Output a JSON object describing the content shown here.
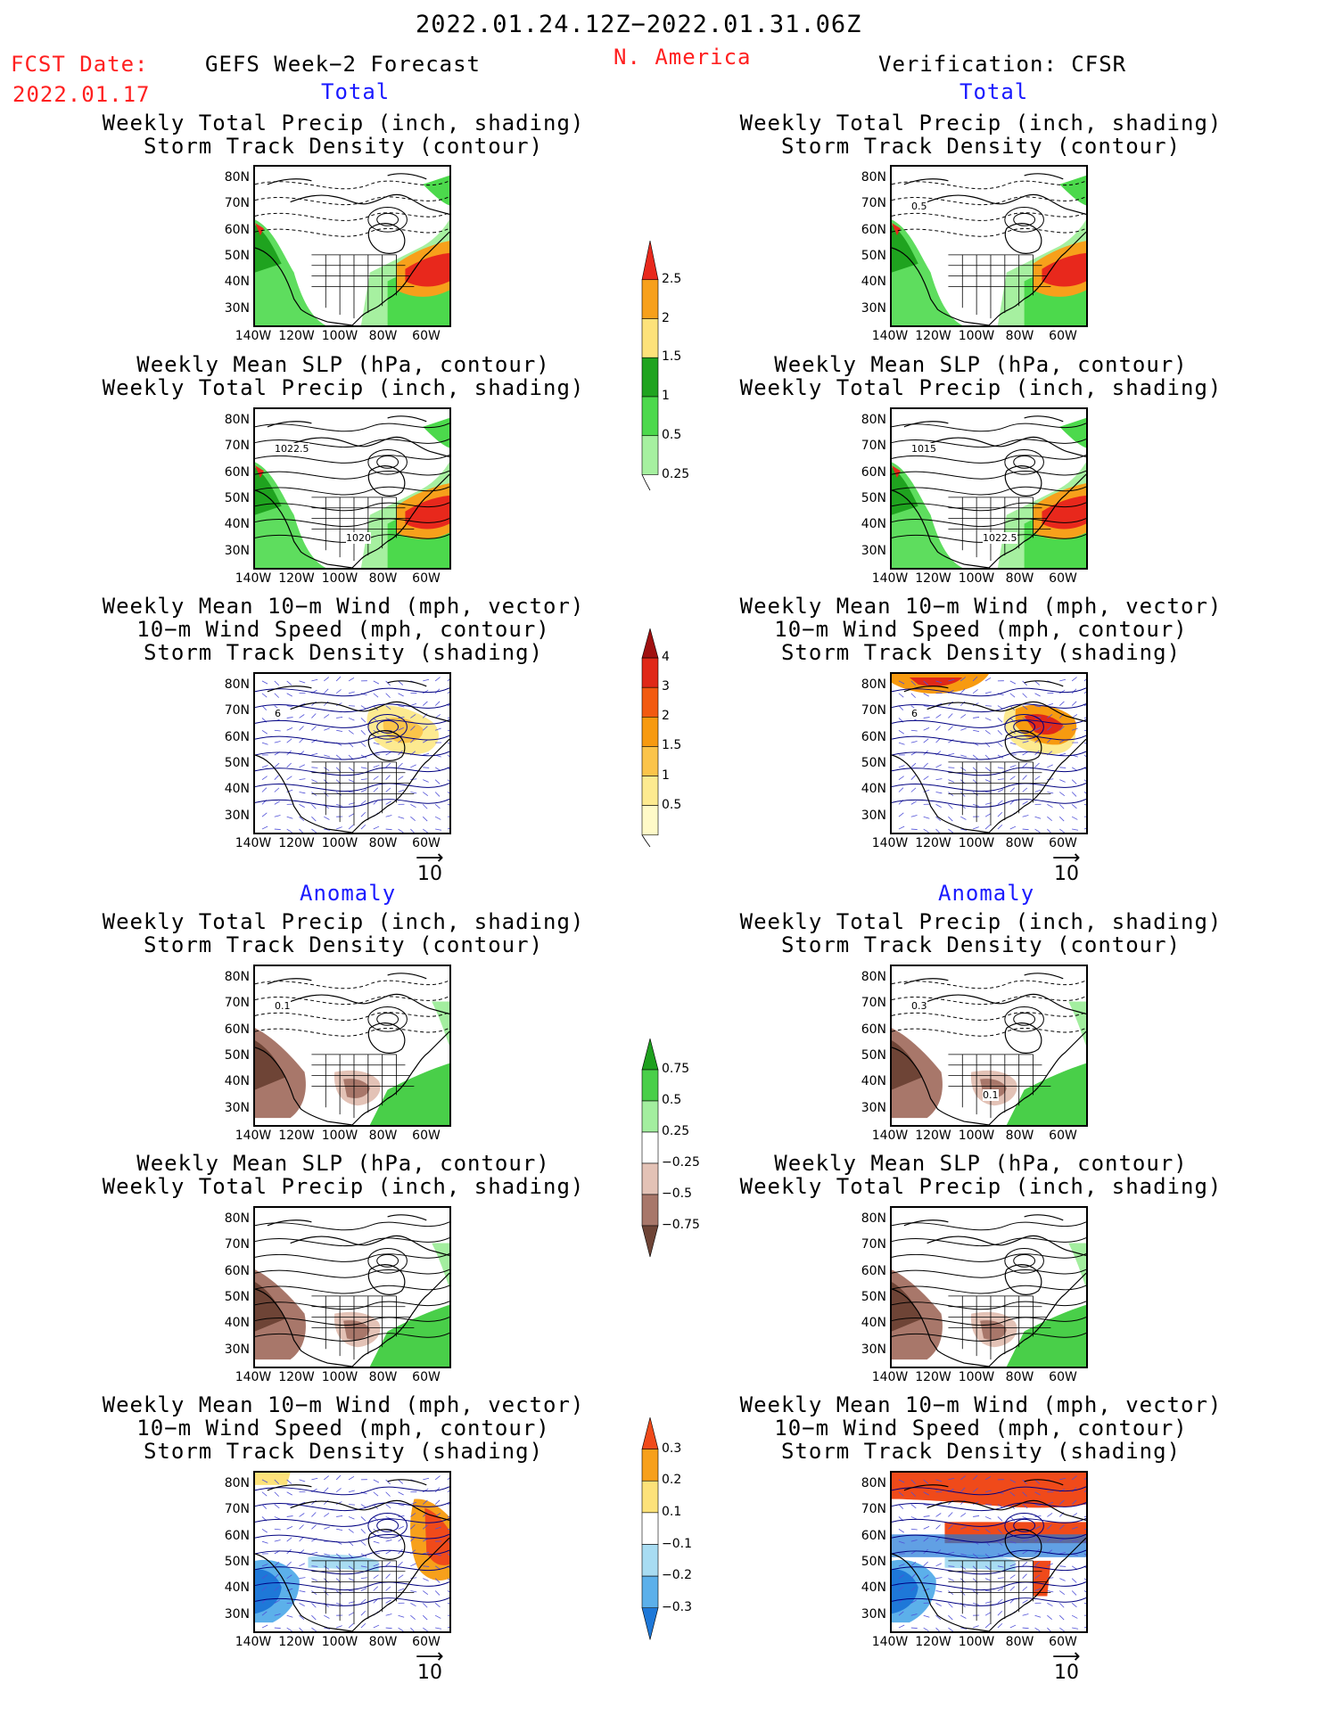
{
  "header": {
    "period": "2022.01.24.12Z−2022.01.31.06Z",
    "fcst_label": "FCST Date:",
    "fcst_date": "2022.01.17",
    "left_product": "GEFS Week−2 Forecast",
    "region": "N. America",
    "right_product": "Verification: CFSR"
  },
  "sections": {
    "total": "Total",
    "anomaly": "Anomaly"
  },
  "titles": {
    "precip_track": [
      "Weekly Total Precip (inch, shading)",
      "Storm Track Density (contour)"
    ],
    "slp_precip": [
      "Weekly Mean SLP (hPa, contour)",
      "Weekly Total Precip (inch, shading)"
    ],
    "wind_track": [
      "Weekly Mean 10−m Wind (mph, vector)",
      "10−m Wind Speed (mph, contour)",
      "Storm Track Density (shading)"
    ]
  },
  "axes": {
    "lat": [
      "80N",
      "70N",
      "60N",
      "50N",
      "40N",
      "30N"
    ],
    "lon": [
      "140W",
      "120W",
      "100W",
      "80W",
      "60W"
    ]
  },
  "vector_ref": "10",
  "panels": {
    "fcst_total_precip": {
      "contour_label": ""
    },
    "fcst_total_slp": {
      "contour_labels": [
        "1022.5",
        "1020"
      ]
    },
    "fcst_total_wind": {
      "contour_labels": [
        "6"
      ]
    },
    "ver_total_precip": {
      "contour_labels": [
        "0.5"
      ]
    },
    "ver_total_slp": {
      "contour_labels": [
        "1015",
        "1022.5"
      ]
    },
    "ver_total_wind": {
      "contour_labels": [
        "6"
      ]
    },
    "fcst_anom_precip": {
      "contour_labels": [
        "0.1"
      ]
    },
    "ver_anom_precip": {
      "contour_labels": [
        "0.3",
        "0.1"
      ]
    }
  },
  "colorbars": {
    "total_precip": {
      "labels": [
        "2.5",
        "2",
        "1.5",
        "1",
        "0.5",
        "0.25"
      ],
      "colors": [
        "#e8281c",
        "#f7a01b",
        "#fde27a",
        "#1fa31f",
        "#4cd94c",
        "#a6f0a0"
      ]
    },
    "total_track": {
      "labels": [
        "4",
        "3",
        "2",
        "1.5",
        "1",
        "0.5"
      ],
      "colors": [
        "#a01010",
        "#e02818",
        "#f25a10",
        "#f79a10",
        "#fbc44a",
        "#fdea90",
        "#fffac8"
      ]
    },
    "anom_precip": {
      "labels": [
        "0.75",
        "0.5",
        "0.25",
        "−0.25",
        "−0.5",
        "−0.75"
      ],
      "colors": [
        "#1ea01e",
        "#49cf49",
        "#a3ee9f",
        "#ffffff",
        "#e3c2b6",
        "#a8776a",
        "#6e4436"
      ]
    },
    "anom_track": {
      "labels": [
        "0.3",
        "0.2",
        "0.1",
        "−0.1",
        "−0.2",
        "−0.3"
      ],
      "colors": [
        "#f04a1a",
        "#f7a01b",
        "#fde27a",
        "#ffffff",
        "#a8dcf2",
        "#5cb0ea",
        "#1e78d8"
      ]
    }
  }
}
